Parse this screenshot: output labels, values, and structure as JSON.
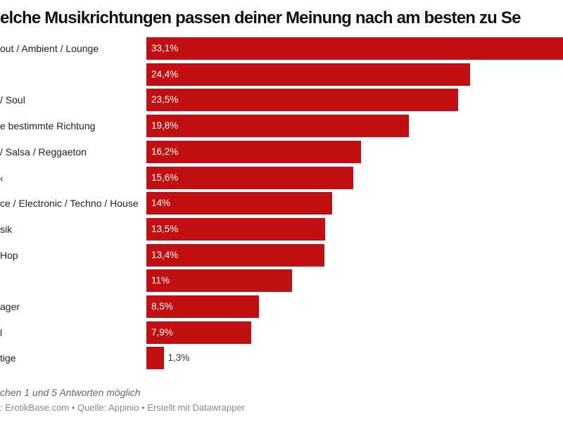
{
  "chart_data": {
    "type": "bar",
    "orientation": "horizontal",
    "title": "elche Musikrichtungen passen deiner Meinung nach am besten zu Se",
    "categories": [
      "out / Ambient / Lounge",
      "",
      "/ Soul",
      "e bestimmte Richtung",
      "/ Salsa / Reggaeton",
      "‹",
      "ce / Electronic / Techno / House",
      "sik",
      "Hop",
      "",
      "ager",
      "l",
      "tige"
    ],
    "values": [
      33.1,
      24.4,
      23.5,
      19.8,
      16.2,
      15.6,
      14,
      13.5,
      13.4,
      11,
      8.5,
      7.9,
      1.3
    ],
    "value_labels": [
      "33,1%",
      "24,4%",
      "23,5%",
      "19,8%",
      "16,2%",
      "15,6%",
      "14%",
      "13,5%",
      "13,4%",
      "11%",
      "8,5%",
      "7,9%",
      "1,3%"
    ],
    "unit": "%",
    "bar_color": "#c20f11",
    "grid": false,
    "note": "chen 1 und 5 Antworten möglich",
    "source": ": ErotikBase.com • Quelle: Appinio • Erstellt mit Datawrapper"
  }
}
